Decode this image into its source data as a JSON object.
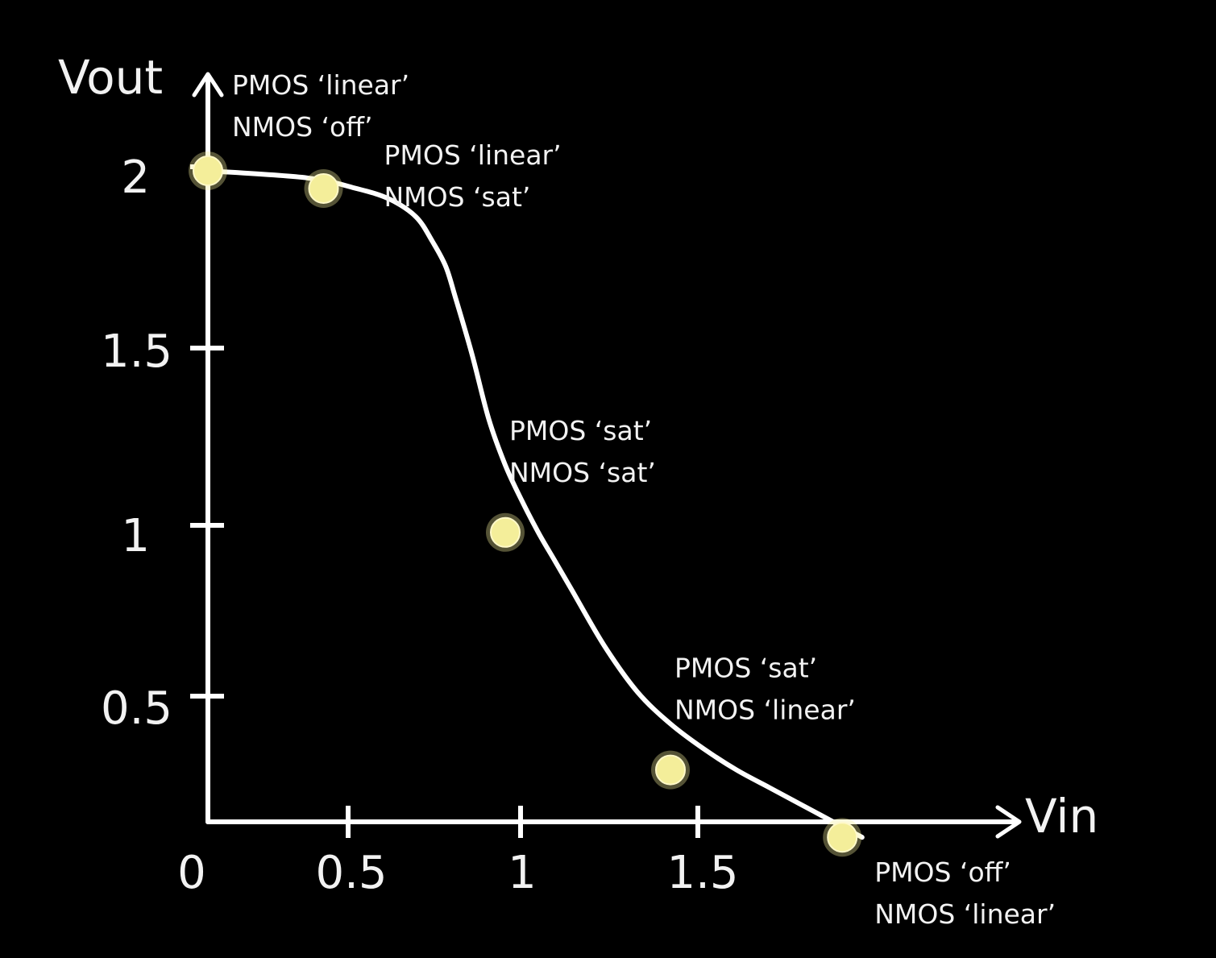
{
  "colors": {
    "background": "#000000",
    "foreground": "#ffffff",
    "point_fill": "#f4ee9a"
  },
  "chart_data": {
    "type": "line",
    "title": "",
    "xlabel": "Vin",
    "ylabel": "Vout",
    "xlim": [
      0,
      2
    ],
    "ylim": [
      0.1,
      2
    ],
    "x_ticks": [
      "0",
      "0.5",
      "1",
      "1.5"
    ],
    "y_ticks": [
      "0.5",
      "1",
      "1.5",
      "2"
    ],
    "grid": false,
    "curve": {
      "x": [
        0,
        0.3,
        0.45,
        0.55,
        0.63,
        0.68,
        0.72,
        0.75,
        0.8,
        0.85,
        0.9,
        0.95,
        1.0,
        1.05,
        1.1,
        1.2,
        1.3,
        1.4,
        1.5,
        1.6,
        1.7,
        1.8,
        1.9,
        1.98
      ],
      "y": [
        2.0,
        1.98,
        1.95,
        1.92,
        1.87,
        1.8,
        1.73,
        1.64,
        1.48,
        1.3,
        1.17,
        1.07,
        0.98,
        0.9,
        0.82,
        0.66,
        0.53,
        0.44,
        0.37,
        0.31,
        0.26,
        0.21,
        0.16,
        0.12
      ]
    },
    "points": [
      {
        "x": 0,
        "y": 2.0,
        "line1": "PMOS ‘linear’",
        "line2": "NMOS ‘off’",
        "anchor": "above-right"
      },
      {
        "x": 0.35,
        "y": 1.95,
        "line1": "PMOS ‘linear’",
        "line2": "NMOS ‘sat’",
        "anchor": "right"
      },
      {
        "x": 0.9,
        "y": 0.98,
        "line1": "PMOS ‘sat’",
        "line2": "NMOS ‘sat’",
        "anchor": "above"
      },
      {
        "x": 1.4,
        "y": 0.31,
        "line1": "PMOS ‘sat’",
        "line2": "NMOS ‘linear’",
        "anchor": "above"
      },
      {
        "x": 1.92,
        "y": 0.12,
        "line1": "PMOS ‘off’",
        "line2": "NMOS ‘linear’",
        "anchor": "below"
      }
    ]
  }
}
